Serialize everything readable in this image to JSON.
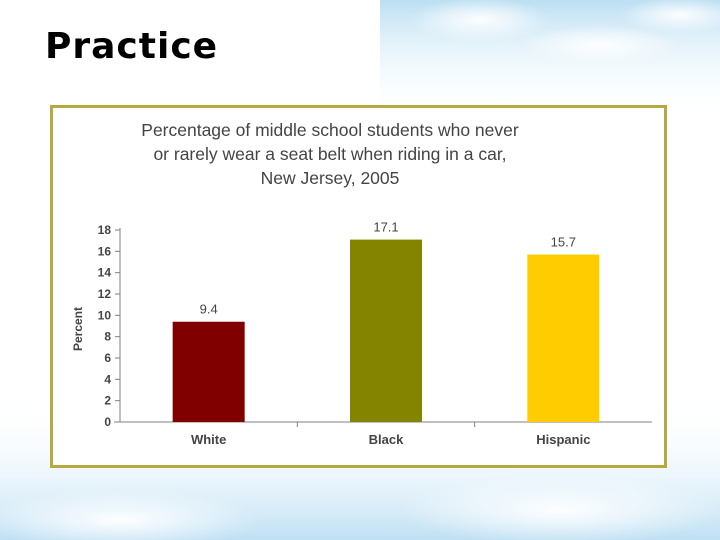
{
  "slide": {
    "title": "Practice"
  },
  "chart_data": {
    "type": "bar",
    "title": "Percentage of middle school students who never or rarely wear a seat belt when riding in a car, New Jersey, 2005",
    "title_lines": [
      "Percentage of middle school students who never",
      "or rarely wear a seat belt when riding in a car,",
      "New Jersey, 2005"
    ],
    "categories": [
      "White",
      "Black",
      "Hispanic"
    ],
    "values": [
      9.4,
      17.1,
      15.7
    ],
    "data_labels": [
      "9.4",
      "17.1",
      "15.7"
    ],
    "bar_colors": [
      "#800000",
      "#848400",
      "#ffcc00"
    ],
    "xlabel": "",
    "ylabel": "Percent",
    "ylim": [
      0,
      18
    ],
    "yticks": [
      0,
      2,
      4,
      6,
      8,
      10,
      12,
      14,
      16,
      18
    ],
    "grid": false,
    "legend": "none"
  },
  "colors": {
    "frame_border": "#b5a940",
    "axis": "#808080",
    "text": "#444444"
  }
}
